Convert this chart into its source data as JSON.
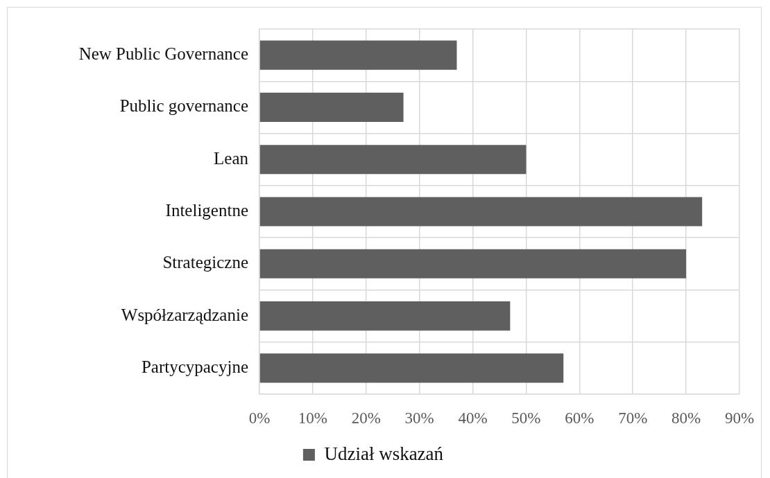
{
  "chart_data": {
    "type": "bar",
    "orientation": "horizontal",
    "categories": [
      "New Public Governance",
      "Public governance",
      "Lean",
      "Inteligentne",
      "Strategiczne",
      "Współzarządzanie",
      "Partycypacyjne"
    ],
    "series": [
      {
        "name": "Udział wskazań",
        "color": "#5f5f5f",
        "values": [
          37,
          27,
          50,
          83,
          80,
          47,
          57
        ]
      }
    ],
    "xlim": [
      0,
      90
    ],
    "xticks": [
      {
        "value": 0,
        "label": "0%"
      },
      {
        "value": 10,
        "label": "10%"
      },
      {
        "value": 20,
        "label": "20%"
      },
      {
        "value": 30,
        "label": "30%"
      },
      {
        "value": 40,
        "label": "40%"
      },
      {
        "value": 50,
        "label": "50%"
      },
      {
        "value": 60,
        "label": "60%"
      },
      {
        "value": 70,
        "label": "70%"
      },
      {
        "value": 80,
        "label": "80%"
      },
      {
        "value": 90,
        "label": "90%"
      }
    ],
    "grid": true,
    "legend": "bottom"
  }
}
